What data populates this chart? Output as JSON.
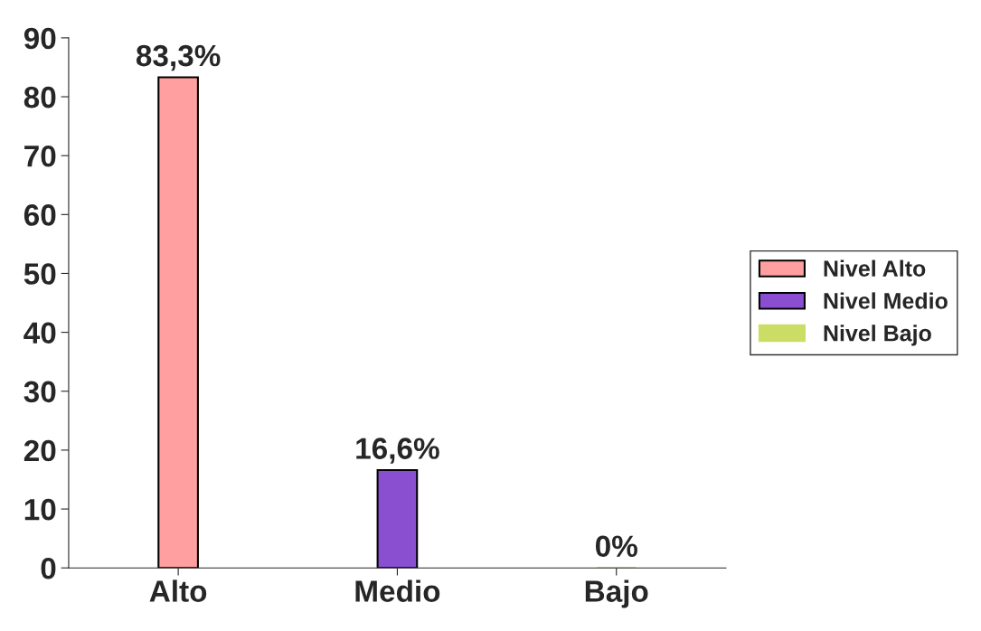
{
  "chart_data": {
    "type": "bar",
    "categories": [
      "Alto",
      "Medio",
      "Bajo"
    ],
    "series": [
      {
        "name": "Nivel Alto",
        "color": "#ff9f9f",
        "values": [
          83.3,
          null,
          null
        ],
        "value_labels": [
          "83,3%",
          null,
          null
        ]
      },
      {
        "name": "Nivel Medio",
        "color": "#8a4fd0",
        "values": [
          null,
          16.6,
          null
        ],
        "value_labels": [
          null,
          "16,6%",
          null
        ]
      },
      {
        "name": "Nivel Bajo",
        "color": "#ccdd66",
        "values": [
          null,
          null,
          0
        ],
        "value_labels": [
          null,
          null,
          "0%"
        ]
      }
    ],
    "ylim": [
      0,
      90
    ],
    "yticks": [
      0,
      10,
      20,
      30,
      40,
      50,
      60,
      70,
      80,
      90
    ],
    "grid": false,
    "legend": "right"
  }
}
